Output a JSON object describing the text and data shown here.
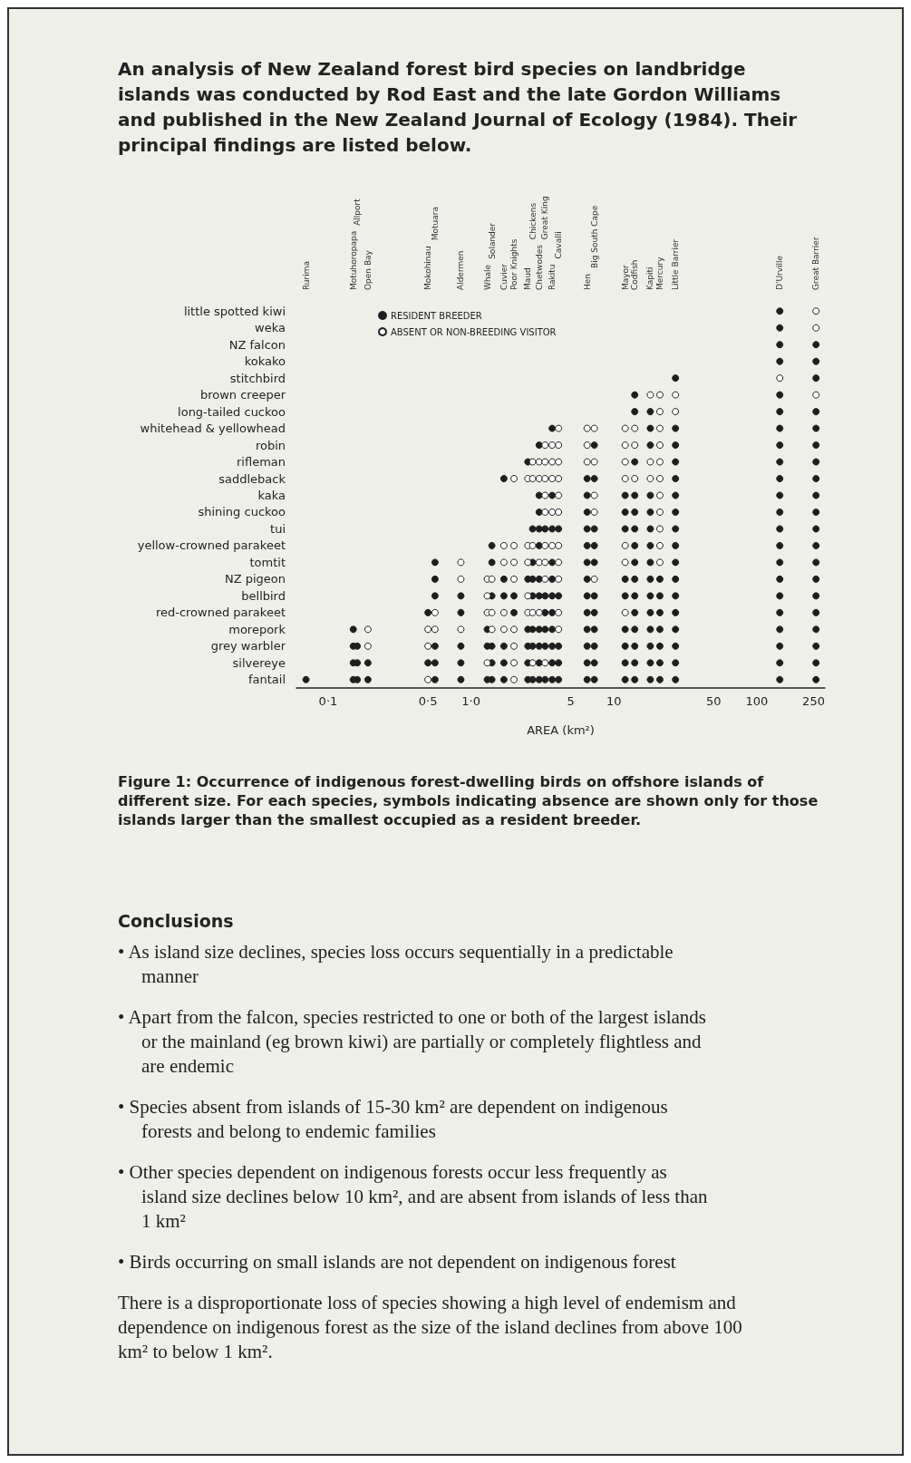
{
  "chart_data": {
    "type": "scatter",
    "orientation": "horizontal",
    "title": "An analysis of New Zealand forest bird species on landbridge islands was conducted by Rod East and the late Gordon Williams and published in the New Zealand Journal of Ecology (1984). Their principal findings are listed below.",
    "xlabel": "AREA (km²)",
    "categories": [
      "little spotted kiwi",
      "weka",
      "NZ falcon",
      "kokako",
      "stitchbird",
      "brown creeper",
      "long-tailed cuckoo",
      "whitehead & yellowhead",
      "robin",
      "rifleman",
      "saddleback",
      "kaka",
      "shining cuckoo",
      "tui",
      "yellow-crowned parakeet",
      "tomtit",
      "NZ pigeon",
      "bellbird",
      "red-crowned parakeet",
      "morepork",
      "grey warbler",
      "silvereye",
      "fantail"
    ],
    "xlim": [
      0.06,
      300
    ],
    "log": "x",
    "xticks": [
      {
        "value": 0.1,
        "label": "0·1"
      },
      {
        "value": 0.5,
        "label": "0·5"
      },
      {
        "value": 1,
        "label": "1·0"
      },
      5,
      10,
      50,
      100,
      250
    ],
    "legend": "top left",
    "marker": "circle",
    "series": [
      {
        "name": "RESIDENT BREEDER",
        "color": "#1e1e1e",
        "x": [
          "little spotted kiwi",
          "weka",
          "NZ falcon",
          "NZ falcon",
          "kokako",
          "kokako",
          "stitchbird",
          "stitchbird",
          "brown creeper",
          "brown creeper",
          "long-tailed cuckoo",
          "long-tailed cuckoo",
          "long-tailed cuckoo",
          "long-tailed cuckoo",
          "whitehead & yellowhead",
          "whitehead & yellowhead",
          "whitehead & yellowhead",
          "whitehead & yellowhead",
          "whitehead & yellowhead",
          "robin",
          "robin",
          "robin",
          "robin",
          "robin",
          "robin",
          "rifleman",
          "rifleman",
          "rifleman",
          "rifleman",
          "rifleman",
          "saddleback",
          "saddleback",
          "saddleback",
          "saddleback",
          "saddleback",
          "saddleback",
          "kaka",
          "kaka",
          "kaka",
          "kaka",
          "kaka",
          "kaka",
          "kaka",
          "kaka",
          "kaka",
          "shining cuckoo",
          "shining cuckoo",
          "shining cuckoo",
          "shining cuckoo",
          "shining cuckoo",
          "shining cuckoo",
          "shining cuckoo",
          "shining cuckoo",
          "tui",
          "tui",
          "tui",
          "tui",
          "tui",
          "tui",
          "tui",
          "tui",
          "tui",
          "tui",
          "tui",
          "tui",
          "tui",
          "yellow-crowned parakeet",
          "yellow-crowned parakeet",
          "yellow-crowned parakeet",
          "yellow-crowned parakeet",
          "yellow-crowned parakeet",
          "yellow-crowned parakeet",
          "yellow-crowned parakeet",
          "yellow-crowned parakeet",
          "yellow-crowned parakeet",
          "tomtit",
          "tomtit",
          "tomtit",
          "tomtit",
          "tomtit",
          "tomtit",
          "tomtit",
          "tomtit",
          "tomtit",
          "tomtit",
          "tomtit",
          "NZ pigeon",
          "NZ pigeon",
          "NZ pigeon",
          "NZ pigeon",
          "NZ pigeon",
          "NZ pigeon",
          "NZ pigeon",
          "NZ pigeon",
          "NZ pigeon",
          "NZ pigeon",
          "NZ pigeon",
          "NZ pigeon",
          "NZ pigeon",
          "NZ pigeon",
          "bellbird",
          "bellbird",
          "bellbird",
          "bellbird",
          "bellbird",
          "bellbird",
          "bellbird",
          "bellbird",
          "bellbird",
          "bellbird",
          "bellbird",
          "bellbird",
          "bellbird",
          "bellbird",
          "bellbird",
          "bellbird",
          "bellbird",
          "bellbird",
          "bellbird",
          "red-crowned parakeet",
          "red-crowned parakeet",
          "red-crowned parakeet",
          "red-crowned parakeet",
          "red-crowned parakeet",
          "red-crowned parakeet",
          "red-crowned parakeet",
          "red-crowned parakeet",
          "red-crowned parakeet",
          "red-crowned parakeet",
          "red-crowned parakeet",
          "red-crowned parakeet",
          "red-crowned parakeet",
          "morepork",
          "morepork",
          "morepork",
          "morepork",
          "morepork",
          "morepork",
          "morepork",
          "morepork",
          "morepork",
          "morepork",
          "morepork",
          "morepork",
          "morepork",
          "morepork",
          "morepork",
          "morepork",
          "grey warbler",
          "grey warbler",
          "grey warbler",
          "grey warbler",
          "grey warbler",
          "grey warbler",
          "grey warbler",
          "grey warbler",
          "grey warbler",
          "grey warbler",
          "grey warbler",
          "grey warbler",
          "grey warbler",
          "grey warbler",
          "grey warbler",
          "grey warbler",
          "grey warbler",
          "grey warbler",
          "grey warbler",
          "grey warbler",
          "grey warbler",
          "grey warbler",
          "silvereye",
          "silvereye",
          "silvereye",
          "silvereye",
          "silvereye",
          "silvereye",
          "silvereye",
          "silvereye",
          "silvereye",
          "silvereye",
          "silvereye",
          "silvereye",
          "silvereye",
          "silvereye",
          "silvereye",
          "silvereye",
          "silvereye",
          "silvereye",
          "silvereye",
          "silvereye",
          "silvereye",
          "fantail",
          "fantail",
          "fantail",
          "fantail",
          "fantail",
          "fantail",
          "fantail",
          "fantail",
          "fantail",
          "fantail",
          "fantail",
          "fantail",
          "fantail",
          "fantail",
          "fantail",
          "fantail",
          "fantail",
          "fantail",
          "fantail",
          "fantail",
          "fantail",
          "fantail",
          "fantail",
          "fantail"
        ],
        "values": [
          145,
          145,
          145,
          260,
          145,
          260,
          27,
          260,
          14,
          145,
          14,
          18,
          145,
          260,
          3.7,
          18,
          27,
          145,
          260,
          3.0,
          7.3,
          18,
          27,
          145,
          260,
          2.5,
          14,
          27,
          145,
          260,
          1.7,
          6.5,
          7.3,
          27,
          145,
          260,
          3.0,
          3.7,
          6.5,
          12,
          14,
          18,
          27,
          145,
          260,
          3.0,
          6.5,
          12,
          14,
          18,
          27,
          145,
          260,
          2.7,
          3.0,
          3.3,
          3.7,
          4.1,
          6.5,
          7.3,
          12,
          14,
          18,
          27,
          145,
          260,
          1.4,
          3.0,
          6.5,
          7.3,
          14,
          18,
          27,
          145,
          260,
          0.56,
          1.4,
          2.7,
          3.7,
          6.5,
          7.3,
          14,
          18,
          27,
          145,
          260,
          0.56,
          1.7,
          2.5,
          2.7,
          3.0,
          3.7,
          6.5,
          12,
          14,
          18,
          21,
          27,
          145,
          260,
          0.56,
          0.85,
          1.4,
          1.7,
          2.0,
          2.7,
          3.0,
          3.3,
          3.7,
          4.1,
          6.5,
          7.3,
          12,
          14,
          18,
          21,
          27,
          145,
          260,
          0.5,
          0.85,
          2.0,
          3.3,
          3.7,
          6.5,
          7.3,
          14,
          18,
          21,
          27,
          145,
          260,
          0.15,
          1.3,
          2.5,
          2.7,
          3.0,
          3.3,
          3.7,
          6.5,
          7.3,
          12,
          14,
          18,
          21,
          27,
          145,
          260,
          0.15,
          0.16,
          0.56,
          0.85,
          1.3,
          1.4,
          1.7,
          2.5,
          2.7,
          3.0,
          3.3,
          3.7,
          4.1,
          6.5,
          7.3,
          12,
          14,
          18,
          21,
          27,
          145,
          260,
          0.15,
          0.16,
          0.19,
          0.5,
          0.56,
          0.85,
          1.4,
          1.7,
          2.5,
          3.0,
          3.7,
          4.1,
          6.5,
          7.3,
          12,
          14,
          18,
          21,
          27,
          145,
          260,
          0.07,
          0.15,
          0.16,
          0.19,
          0.56,
          0.85,
          1.3,
          1.4,
          1.7,
          2.5,
          2.7,
          3.0,
          3.3,
          3.7,
          4.1,
          6.5,
          7.3,
          12,
          14,
          18,
          21,
          27,
          145,
          260
        ]
      },
      {
        "name": "ABSENT OR NON-BREEDING VISITOR",
        "color": "#ffffff",
        "x": [
          "little spotted kiwi",
          "weka",
          "stitchbird",
          "brown creeper",
          "brown creeper",
          "brown creeper",
          "brown creeper",
          "long-tailed cuckoo",
          "long-tailed cuckoo",
          "whitehead & yellowhead",
          "whitehead & yellowhead",
          "whitehead & yellowhead",
          "whitehead & yellowhead",
          "whitehead & yellowhead",
          "whitehead & yellowhead",
          "robin",
          "robin",
          "robin",
          "robin",
          "robin",
          "robin",
          "robin",
          "rifleman",
          "rifleman",
          "rifleman",
          "rifleman",
          "rifleman",
          "rifleman",
          "rifleman",
          "rifleman",
          "rifleman",
          "rifleman",
          "saddleback",
          "saddleback",
          "saddleback",
          "saddleback",
          "saddleback",
          "saddleback",
          "saddleback",
          "saddleback",
          "saddleback",
          "saddleback",
          "saddleback",
          "kaka",
          "kaka",
          "kaka",
          "kaka",
          "shining cuckoo",
          "shining cuckoo",
          "shining cuckoo",
          "shining cuckoo",
          "shining cuckoo",
          "tui",
          "yellow-crowned parakeet",
          "yellow-crowned parakeet",
          "yellow-crowned parakeet",
          "yellow-crowned parakeet",
          "yellow-crowned parakeet",
          "yellow-crowned parakeet",
          "yellow-crowned parakeet",
          "yellow-crowned parakeet",
          "yellow-crowned parakeet",
          "tomtit",
          "tomtit",
          "tomtit",
          "tomtit",
          "tomtit",
          "tomtit",
          "tomtit",
          "tomtit",
          "tomtit",
          "NZ pigeon",
          "NZ pigeon",
          "NZ pigeon",
          "NZ pigeon",
          "NZ pigeon",
          "NZ pigeon",
          "NZ pigeon",
          "bellbird",
          "bellbird",
          "red-crowned parakeet",
          "red-crowned parakeet",
          "red-crowned parakeet",
          "red-crowned parakeet",
          "red-crowned parakeet",
          "red-crowned parakeet",
          "red-crowned parakeet",
          "red-crowned parakeet",
          "red-crowned parakeet",
          "morepork",
          "morepork",
          "morepork",
          "morepork",
          "morepork",
          "morepork",
          "morepork",
          "morepork",
          "grey warbler",
          "grey warbler",
          "grey warbler",
          "silvereye",
          "silvereye",
          "silvereye",
          "silvereye",
          "fantail",
          "fantail"
        ],
        "values": [
          260,
          260,
          145,
          18,
          21,
          27,
          260,
          21,
          27,
          4.1,
          6.5,
          7.3,
          12,
          14,
          21,
          3.3,
          3.7,
          4.1,
          6.5,
          12,
          14,
          21,
          2.7,
          3.0,
          3.3,
          3.7,
          4.1,
          6.5,
          7.3,
          12,
          18,
          21,
          2.0,
          2.5,
          2.7,
          3.0,
          3.3,
          3.7,
          4.1,
          12,
          14,
          18,
          21,
          3.3,
          4.1,
          7.3,
          21,
          3.3,
          3.7,
          4.1,
          7.3,
          21,
          21,
          1.7,
          2.0,
          2.5,
          2.7,
          3.3,
          3.7,
          4.1,
          12,
          21,
          0.85,
          1.7,
          2.0,
          2.5,
          3.0,
          3.3,
          4.1,
          12,
          21,
          0.85,
          1.3,
          1.4,
          2.0,
          3.3,
          4.1,
          7.3,
          1.3,
          2.5,
          0.56,
          1.3,
          1.4,
          1.7,
          2.5,
          2.7,
          3.0,
          4.1,
          12,
          0.19,
          0.5,
          0.56,
          0.85,
          1.4,
          1.7,
          2.0,
          4.1,
          0.19,
          0.5,
          2.0,
          1.3,
          2.0,
          2.7,
          3.3,
          0.5,
          2.0
        ]
      }
    ],
    "annotations": [
      "Rurima",
      "Motuhoropapa",
      "Allport",
      "Open Bay",
      "Mokohinau",
      "Motuara",
      "Aldermen",
      "Whale",
      "Solander",
      "Cuvier",
      "Poor Knights",
      "Maud",
      "Chickens",
      "Chetwodes",
      "Great King",
      "Rakitu",
      "Cavalli",
      "Hen",
      "Big South Cape",
      "Mayor",
      "Codfish",
      "Kapiti",
      "Mercury",
      "Little Barrier",
      "D'Urville",
      "Great Barrier",
      "Figure 1: Occurrence of indigenous forest-dwelling birds on offshore islands of different size. For each species, symbols indicating absence are shown only for those islands larger than the smallest occupied as a resident breeder.",
      "Conclusions",
      "• As island size declines, species loss occurs sequentially in a predictable manner",
      "• Apart from the falcon, species restricted to one or both of the largest islands or the mainland (eg brown kiwi) are partially or completely flightless and are endemic",
      "• Species absent from islands of 15-30 km² are dependent on indigenous forests and belong to endemic families",
      "• Other species dependent on indigenous forests occur less frequently as island size declines below 10 km², and are absent from islands of less than 1 km²",
      "• Birds occurring on small islands are not dependent on indigenous forest",
      "There is a disproportionate loss of species showing a high level of endemism and dependence on indigenous forest as the size of the island declines from above 100 km² to below 1 km²."
    ]
  }
}
